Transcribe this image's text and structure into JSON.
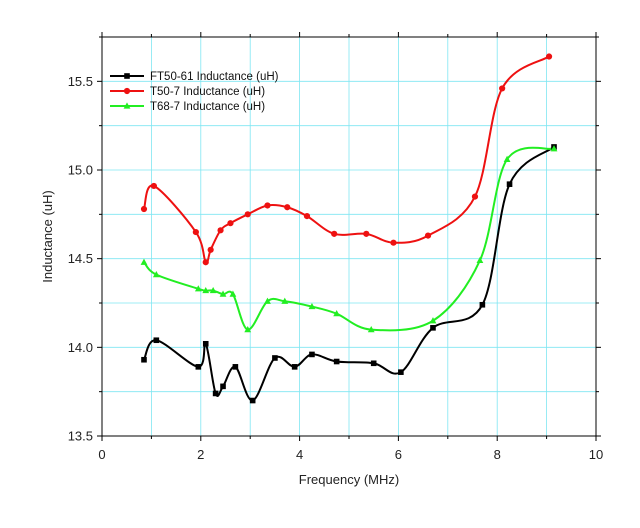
{
  "chart_data": {
    "type": "line",
    "xlabel": "Frequency (MHz)",
    "ylabel": "Inductance (uH)",
    "xlim": [
      0,
      10
    ],
    "ylim": [
      13.5,
      15.75
    ],
    "xticks": [
      "0",
      "2",
      "4",
      "6",
      "8",
      "10"
    ],
    "yticks": [
      "13.5",
      "14.0",
      "14.5",
      "15.0",
      "15.5"
    ],
    "grid": true,
    "legend_position": "top-left",
    "series": [
      {
        "name": "FT50-61 Inductance (uH)",
        "color": "#000000",
        "marker": "square",
        "x": [
          0.85,
          1.1,
          1.95,
          2.1,
          2.3,
          2.45,
          2.7,
          3.05,
          3.5,
          3.9,
          4.25,
          4.75,
          5.5,
          6.05,
          6.7,
          7.7,
          8.25,
          9.15
        ],
        "y": [
          13.93,
          14.04,
          13.89,
          14.02,
          13.74,
          13.78,
          13.89,
          13.7,
          13.94,
          13.89,
          13.96,
          13.92,
          13.91,
          13.86,
          14.11,
          14.24,
          14.92,
          15.13
        ]
      },
      {
        "name": "T50-7 Inductance (uH)",
        "color": "#ee1111",
        "marker": "circle",
        "x": [
          0.85,
          1.05,
          1.9,
          2.1,
          2.2,
          2.4,
          2.6,
          2.95,
          3.35,
          3.75,
          4.15,
          4.7,
          5.35,
          5.9,
          6.6,
          7.55,
          8.1,
          9.05
        ],
        "y": [
          14.78,
          14.91,
          14.65,
          14.48,
          14.55,
          14.66,
          14.7,
          14.75,
          14.8,
          14.79,
          14.74,
          14.64,
          14.64,
          14.59,
          14.63,
          14.85,
          15.46,
          15.64
        ]
      },
      {
        "name": "T68-7 Inductance (uH)",
        "color": "#22ee22",
        "marker": "triangle",
        "x": [
          0.85,
          1.1,
          1.95,
          2.1,
          2.25,
          2.45,
          2.65,
          2.95,
          3.35,
          3.7,
          4.25,
          4.75,
          5.45,
          6.7,
          7.65,
          8.2,
          9.15
        ],
        "y": [
          14.48,
          14.41,
          14.33,
          14.32,
          14.32,
          14.3,
          14.3,
          14.1,
          14.26,
          14.26,
          14.23,
          14.19,
          14.1,
          14.15,
          14.49,
          15.06,
          15.12
        ]
      }
    ]
  }
}
